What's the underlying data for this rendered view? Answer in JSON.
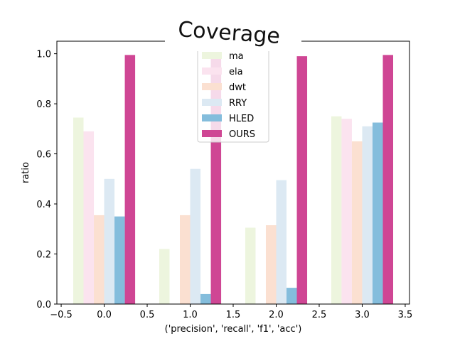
{
  "chart_data": {
    "type": "bar",
    "title": "Coverage",
    "xlabel": "('precision', 'recall', 'f1', 'acc')",
    "ylabel": "ratio",
    "xlim": [
      -0.55,
      3.55
    ],
    "ylim": [
      0.0,
      1.05
    ],
    "x_ticks": [
      -0.5,
      0.0,
      0.5,
      1.0,
      1.5,
      2.0,
      2.5,
      3.0,
      3.5
    ],
    "x_tick_labels": [
      "−0.5",
      "0.0",
      "0.5",
      "1.0",
      "1.5",
      "2.0",
      "2.5",
      "3.0",
      "3.5"
    ],
    "y_ticks": [
      0.0,
      0.2,
      0.4,
      0.6,
      0.8,
      1.0
    ],
    "y_tick_labels": [
      "0.0",
      "0.2",
      "0.4",
      "0.6",
      "0.8",
      "1.0"
    ],
    "grid": false,
    "legend_position": "top-center",
    "x": [
      0,
      1,
      2,
      3
    ],
    "bar_width": 0.12,
    "series": [
      {
        "name": "ma",
        "color": "#edf5de",
        "values": [
          0.745,
          0.22,
          0.305,
          0.75
        ]
      },
      {
        "name": "ela",
        "color": "#fbe3ef",
        "values": [
          0.69,
          0.0,
          0.0,
          0.74
        ]
      },
      {
        "name": "dwt",
        "color": "#fbe0d1",
        "values": [
          0.355,
          0.355,
          0.315,
          0.65
        ]
      },
      {
        "name": "RRY",
        "color": "#dce9f3",
        "values": [
          0.5,
          0.54,
          0.495,
          0.71
        ]
      },
      {
        "name": "HLED",
        "color": "#84bddc",
        "values": [
          0.35,
          0.04,
          0.065,
          0.725
        ]
      },
      {
        "name": "OURS",
        "color": "#cf4694",
        "values": [
          0.995,
          0.99,
          0.99,
          0.995
        ]
      }
    ]
  }
}
